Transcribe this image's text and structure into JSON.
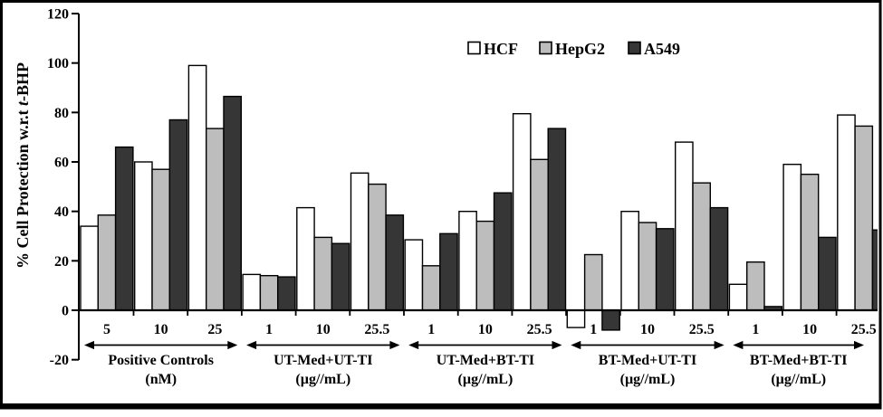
{
  "chart_data": {
    "type": "bar",
    "title": "",
    "ylabel": {
      "full": "% Cell Protection w.r.t t-BHP",
      "prefix": "% Cell Protection w.r.t ",
      "italic": "t",
      "suffix": "-BHP"
    },
    "xlabel": "",
    "ylim": [
      -20,
      120
    ],
    "yticks": [
      120,
      100,
      80,
      60,
      40,
      20,
      0,
      -20
    ],
    "grid": false,
    "legend_position": "top-center",
    "series": [
      {
        "name": "HCF",
        "color": "#ffffff"
      },
      {
        "name": "HepG2",
        "color": "#bdbdbd"
      },
      {
        "name": "A549",
        "color": "#363636"
      }
    ],
    "bar_outline_color": "#000000",
    "groups": [
      {
        "label": "Positive Controls",
        "unit": "(nM)",
        "doses": [
          "5",
          "10",
          "25"
        ],
        "values": {
          "HCF": [
            34,
            60,
            99
          ],
          "HepG2": [
            38.5,
            57,
            73.5
          ],
          "A549": [
            66,
            77,
            86.5
          ]
        }
      },
      {
        "label": "UT-Med+UT-TI",
        "unit": "(µg//mL)",
        "doses": [
          "1",
          "10",
          "25.5"
        ],
        "values": {
          "HCF": [
            14.5,
            41.5,
            55.5
          ],
          "HepG2": [
            14,
            29.5,
            51
          ],
          "A549": [
            13.5,
            27,
            38.5
          ]
        }
      },
      {
        "label": "UT-Med+BT-TI",
        "unit": "(µg//mL)",
        "doses": [
          "1",
          "10",
          "25.5"
        ],
        "values": {
          "HCF": [
            28.5,
            40,
            79.5
          ],
          "HepG2": [
            18,
            36,
            61
          ],
          "A549": [
            31,
            47.5,
            73.5
          ]
        }
      },
      {
        "label": "BT-Med+UT-TI",
        "unit": "(µg//mL)",
        "doses": [
          "1",
          "10",
          "25.5"
        ],
        "values": {
          "HCF": [
            -7,
            40,
            68
          ],
          "HepG2": [
            22.5,
            35.5,
            51.5
          ],
          "A549": [
            -8,
            33,
            41.5
          ]
        }
      },
      {
        "label": "BT-Med+BT-TI",
        "unit": "(µg//mL)",
        "doses": [
          "1",
          "10",
          "25.5"
        ],
        "values": {
          "HCF": [
            10.5,
            59,
            79
          ],
          "HepG2": [
            19.5,
            55,
            74.5
          ],
          "A549": [
            1.5,
            29.5,
            32.5
          ]
        }
      }
    ]
  }
}
